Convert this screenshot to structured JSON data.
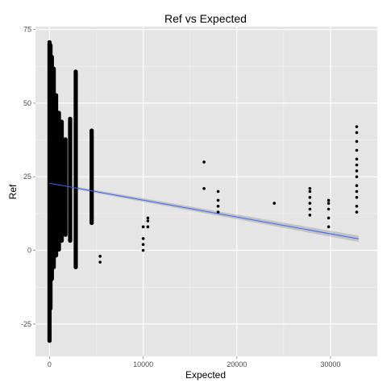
{
  "chart_data": {
    "type": "scatter",
    "title": "Ref vs Expected",
    "xlabel": "Expected",
    "ylabel": "Ref",
    "xlim": [
      -1500,
      35000
    ],
    "ylim": [
      -36,
      76
    ],
    "x_ticks": [
      0,
      10000,
      20000,
      30000
    ],
    "y_ticks": [
      -25,
      0,
      25,
      50,
      75
    ],
    "x_tick_labels": [
      "0",
      "10000",
      "20000",
      "30000"
    ],
    "y_tick_labels": [
      "-25",
      "0",
      "25",
      "50",
      "75"
    ],
    "grid": true,
    "legend": "none",
    "colors": {
      "panel_bg": "#e5e5e5",
      "grid_major": "#ffffff",
      "grid_minor": "#f2f2f2",
      "points": "#000000",
      "fit_line": "#3366ff",
      "confidence_band": "#999999"
    },
    "clusters": [
      {
        "x": 0,
        "y_min": -31,
        "y_max": 71
      },
      {
        "x": 100,
        "y_min": -20,
        "y_max": 70
      },
      {
        "x": 250,
        "y_min": -10,
        "y_max": 66
      },
      {
        "x": 450,
        "y_min": -6,
        "y_max": 62
      },
      {
        "x": 700,
        "y_min": -2,
        "y_max": 53
      },
      {
        "x": 1000,
        "y_min": 0,
        "y_max": 47
      },
      {
        "x": 1300,
        "y_min": 3,
        "y_max": 44
      },
      {
        "x": 1700,
        "y_min": 5,
        "y_max": 38
      },
      {
        "x": 2200,
        "y_min": 3,
        "y_max": 45
      },
      {
        "x": 2800,
        "y_min": -6,
        "y_max": 61
      },
      {
        "x": 4500,
        "y_min": 9,
        "y_max": 41
      }
    ],
    "points": [
      {
        "x": 5400,
        "y": -2
      },
      {
        "x": 5400,
        "y": -4
      },
      {
        "x": 10000,
        "y": 0
      },
      {
        "x": 10000,
        "y": 2
      },
      {
        "x": 10000,
        "y": 4
      },
      {
        "x": 10000,
        "y": 8
      },
      {
        "x": 10500,
        "y": 8
      },
      {
        "x": 10500,
        "y": 10
      },
      {
        "x": 10500,
        "y": 11
      },
      {
        "x": 16500,
        "y": 21
      },
      {
        "x": 16500,
        "y": 30
      },
      {
        "x": 18000,
        "y": 13
      },
      {
        "x": 18000,
        "y": 15
      },
      {
        "x": 18000,
        "y": 17
      },
      {
        "x": 18000,
        "y": 20
      },
      {
        "x": 24000,
        "y": 16
      },
      {
        "x": 27800,
        "y": 12
      },
      {
        "x": 27800,
        "y": 14
      },
      {
        "x": 27800,
        "y": 16
      },
      {
        "x": 27800,
        "y": 18
      },
      {
        "x": 27800,
        "y": 20
      },
      {
        "x": 27800,
        "y": 21
      },
      {
        "x": 29800,
        "y": 8
      },
      {
        "x": 29800,
        "y": 11
      },
      {
        "x": 29800,
        "y": 14
      },
      {
        "x": 29800,
        "y": 16
      },
      {
        "x": 29800,
        "y": 17
      },
      {
        "x": 32800,
        "y": 13
      },
      {
        "x": 32800,
        "y": 15
      },
      {
        "x": 32800,
        "y": 18
      },
      {
        "x": 32800,
        "y": 20
      },
      {
        "x": 32800,
        "y": 22
      },
      {
        "x": 32800,
        "y": 25
      },
      {
        "x": 32800,
        "y": 27
      },
      {
        "x": 32800,
        "y": 29
      },
      {
        "x": 32800,
        "y": 31
      },
      {
        "x": 32800,
        "y": 34
      },
      {
        "x": 32800,
        "y": 37
      },
      {
        "x": 32800,
        "y": 40
      },
      {
        "x": 32800,
        "y": 42
      }
    ],
    "fit_line": {
      "x": [
        0,
        33000
      ],
      "y": [
        22.8,
        3.9
      ]
    },
    "confidence_band": {
      "x": [
        0,
        33000
      ],
      "lower": [
        22.4,
        2.9
      ],
      "upper": [
        23.2,
        5.0
      ]
    }
  }
}
